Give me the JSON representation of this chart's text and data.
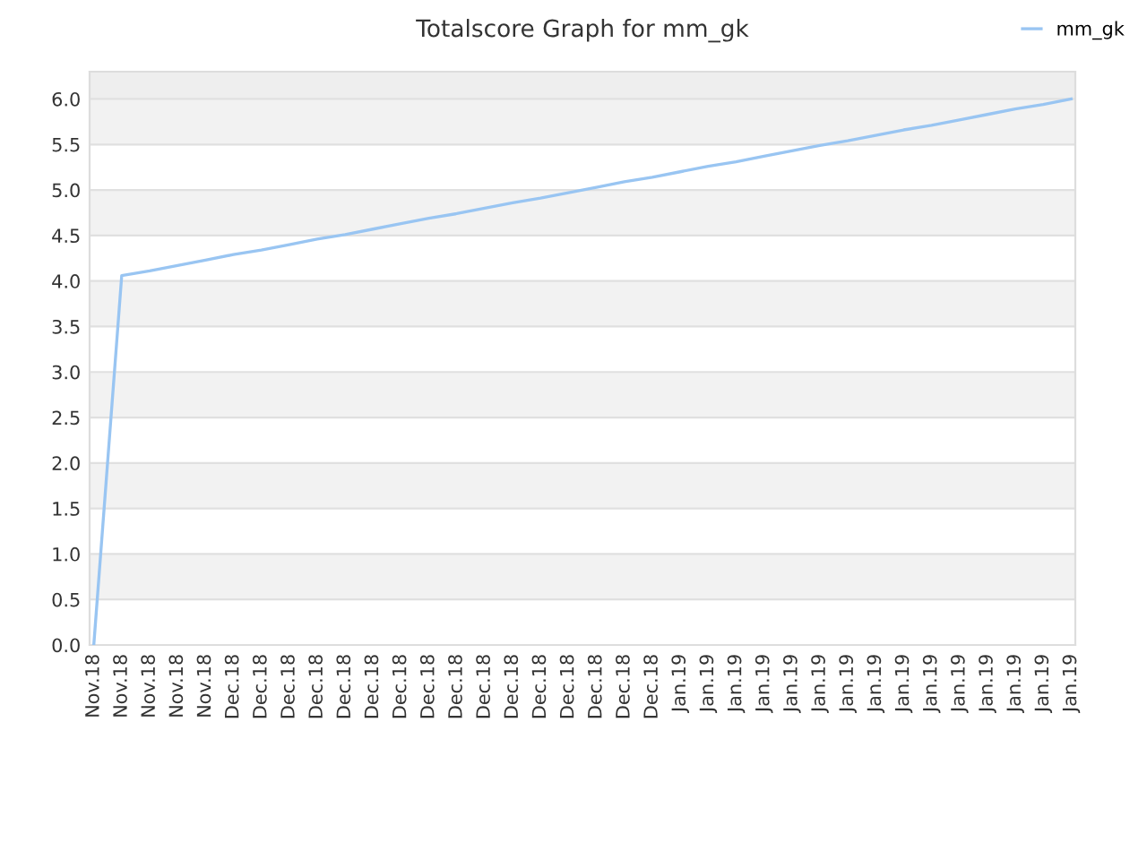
{
  "chart_data": {
    "type": "line",
    "title": "Totalscore Graph for mm_gk",
    "categories": [
      "Nov.18",
      "Nov.18",
      "Nov.18",
      "Nov.18",
      "Nov.18",
      "Dec.18",
      "Dec.18",
      "Dec.18",
      "Dec.18",
      "Dec.18",
      "Dec.18",
      "Dec.18",
      "Dec.18",
      "Dec.18",
      "Dec.18",
      "Dec.18",
      "Dec.18",
      "Dec.18",
      "Dec.18",
      "Dec.18",
      "Dec.18",
      "Jan.19",
      "Jan.19",
      "Jan.19",
      "Jan.19",
      "Jan.19",
      "Jan.19",
      "Jan.19",
      "Jan.19",
      "Jan.19",
      "Jan.19",
      "Jan.19",
      "Jan.19",
      "Jan.19",
      "Jan.19",
      "Jan.19"
    ],
    "series": [
      {
        "name": "mm_gk",
        "color": "#99c5f2",
        "values": [
          0,
          4.06,
          4.11,
          4.17,
          4.23,
          4.29,
          4.34,
          4.4,
          4.46,
          4.51,
          4.57,
          4.63,
          4.69,
          4.74,
          4.8,
          4.86,
          4.91,
          4.97,
          5.03,
          5.09,
          5.14,
          5.2,
          5.26,
          5.31,
          5.37,
          5.43,
          5.49,
          5.54,
          5.6,
          5.66,
          5.71,
          5.77,
          5.83,
          5.89,
          5.94,
          6.0
        ]
      }
    ],
    "ylim": [
      0,
      6.3
    ],
    "yticks": [
      {
        "value": 0,
        "label": "0.0"
      },
      {
        "value": 0.5,
        "label": "0.5"
      },
      {
        "value": 1,
        "label": "1.0"
      },
      {
        "value": 1.5,
        "label": "1.5"
      },
      {
        "value": 2,
        "label": "2.0"
      },
      {
        "value": 2.5,
        "label": "2.5"
      },
      {
        "value": 3,
        "label": "3.0"
      },
      {
        "value": 3.5,
        "label": "3.5"
      },
      {
        "value": 4,
        "label": "4.0"
      },
      {
        "value": 4.5,
        "label": "4.5"
      },
      {
        "value": 5,
        "label": "5.0"
      },
      {
        "value": 5.5,
        "label": "5.5"
      },
      {
        "value": 6,
        "label": "6.0"
      }
    ],
    "grid": "y",
    "legend": "top right",
    "marker": "none",
    "line_style": "solid"
  }
}
